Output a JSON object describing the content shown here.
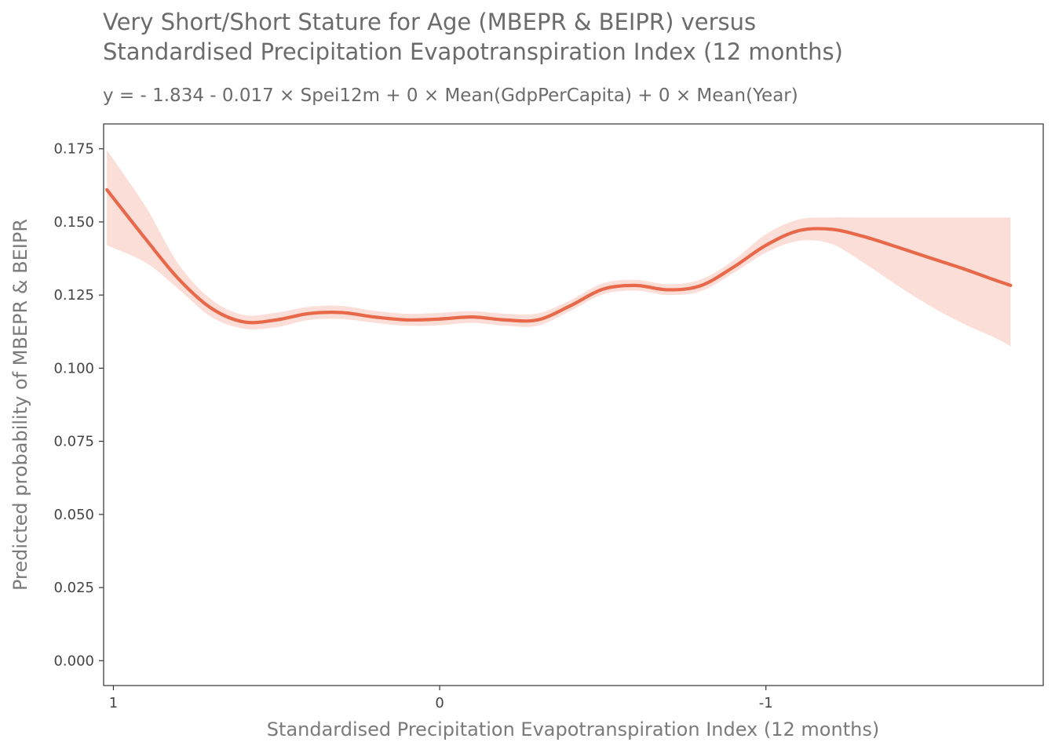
{
  "chart_data": {
    "type": "line",
    "title_lines": [
      "Very Short/Short Stature for Age (MBEPR & BEIPR) versus",
      "Standardised Precipitation Evapotranspiration Index (12 months)"
    ],
    "subtitle": "y =  - 1.834 - 0.017 × Spei12m + 0 × Mean(GdpPerCapita) + 0 × Mean(Year)",
    "xlabel": "Standardised Precipitation Evapotranspiration Index (12 months)",
    "ylabel": "Predicted probability of MBEPR & BEIPR",
    "x_reversed": true,
    "xlim": [
      1.03,
      -1.85
    ],
    "ylim": [
      -0.0085,
      0.1835
    ],
    "x_ticks": [
      1,
      0,
      -1
    ],
    "x_tick_labels": [
      "1",
      "0",
      "-1"
    ],
    "y_ticks": [
      0,
      0.025,
      0.05,
      0.075,
      0.1,
      0.125,
      0.15,
      0.175
    ],
    "y_tick_labels": [
      "0.000",
      "0.025",
      "0.050",
      "0.075",
      "0.100",
      "0.125",
      "0.150",
      "0.175"
    ],
    "grid": false,
    "line_color": "#e8684a",
    "band_color": "#fbded7",
    "series": [
      {
        "x": [
          1.02,
          0.9,
          0.8,
          0.7,
          0.6,
          0.5,
          0.4,
          0.3,
          0.2,
          0.1,
          0.0,
          -0.1,
          -0.2,
          -0.3,
          -0.4,
          -0.5,
          -0.6,
          -0.7,
          -0.8,
          -0.9,
          -1.0,
          -1.1,
          -1.2,
          -1.3,
          -1.4,
          -1.5,
          -1.6,
          -1.7,
          -1.75
        ],
        "values": [
          0.161,
          0.144,
          0.1305,
          0.1205,
          0.1158,
          0.1165,
          0.1187,
          0.119,
          0.1175,
          0.1165,
          0.1168,
          0.1175,
          0.1165,
          0.1165,
          0.1213,
          0.127,
          0.1283,
          0.1268,
          0.1282,
          0.1345,
          0.142,
          0.147,
          0.1475,
          0.145,
          0.1415,
          0.1378,
          0.1342,
          0.1302,
          0.1283
        ],
        "lower": [
          0.142,
          0.136,
          0.127,
          0.1175,
          0.1135,
          0.114,
          0.1165,
          0.1168,
          0.1155,
          0.1145,
          0.1147,
          0.1155,
          0.1145,
          0.1145,
          0.1195,
          0.1252,
          0.1265,
          0.125,
          0.1263,
          0.1325,
          0.1395,
          0.1435,
          0.1425,
          0.136,
          0.1285,
          0.1215,
          0.1155,
          0.1105,
          0.1075
        ],
        "upper": [
          0.1745,
          0.155,
          0.1355,
          0.1235,
          0.1182,
          0.119,
          0.121,
          0.1213,
          0.1196,
          0.1186,
          0.1189,
          0.1195,
          0.1186,
          0.1187,
          0.1232,
          0.129,
          0.1302,
          0.1287,
          0.1303,
          0.1368,
          0.1458,
          0.1508,
          0.1515,
          0.1515,
          0.1515,
          0.1515,
          0.1515,
          0.1515,
          0.1515
        ]
      }
    ]
  }
}
